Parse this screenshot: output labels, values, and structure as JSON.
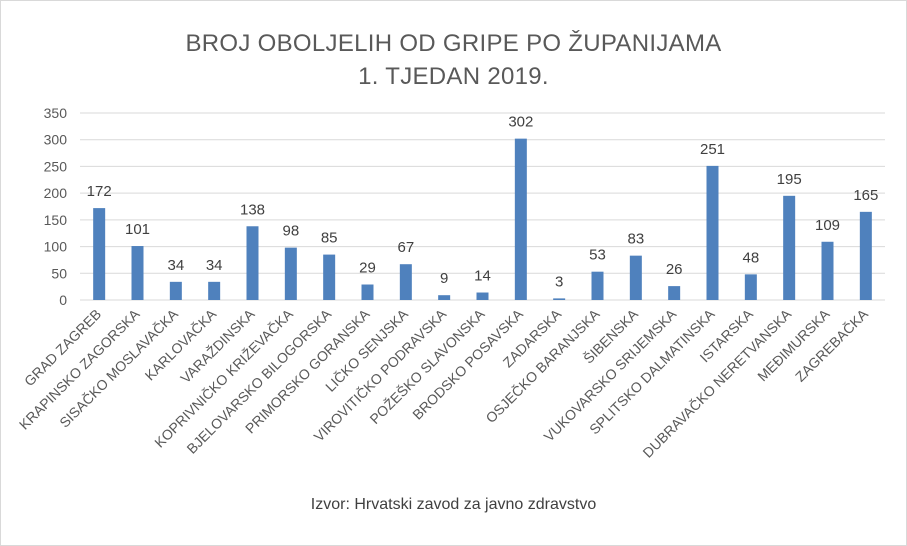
{
  "chart_data": {
    "type": "bar",
    "title": [
      "BROJ OBOLJELIH OD GRIPE PO ŽUPANIJAMA",
      "1. TJEDAN 2019."
    ],
    "categories": [
      "GRAD ZAGREB",
      "KRAPINSKO ZAGORSKA",
      "SISAČKO MOSLAVAČKA",
      "KARLOVAČKA",
      "VARAŽDINSKA",
      "KOPRIVNIČKO KRIŽEVAČKA",
      "BJELOVARSKO BILOGORSKA",
      "PRIMORSKO GORANSKA",
      "LIČKO SENJSKA",
      "VIROVITIČKO PODRAVSKA",
      "POŽEŠKO SLAVONSKA",
      "BRODSKO POSAVSKA",
      "ZADARSKA",
      "OSJEČKO BARANJSKA",
      "ŠIBENSKA",
      "VUKOVARSKO SRIJEMSKA",
      "SPLITSKO DALMATINSKA",
      "ISTARSKA",
      "DUBRAVAČKO NERETVANSKA",
      "MEĐIMURSKA",
      "ZAGREBAČKA"
    ],
    "values": [
      172,
      101,
      34,
      34,
      138,
      98,
      85,
      29,
      67,
      9,
      14,
      302,
      3,
      53,
      83,
      26,
      251,
      48,
      195,
      109,
      165
    ],
    "ylim": [
      0,
      350
    ],
    "yticks": [
      0,
      50,
      100,
      150,
      200,
      250,
      300,
      350
    ],
    "grid": true,
    "bar_color": "#4f81bd",
    "source": "Izvor: Hrvatski zavod za javno zdravstvo"
  }
}
